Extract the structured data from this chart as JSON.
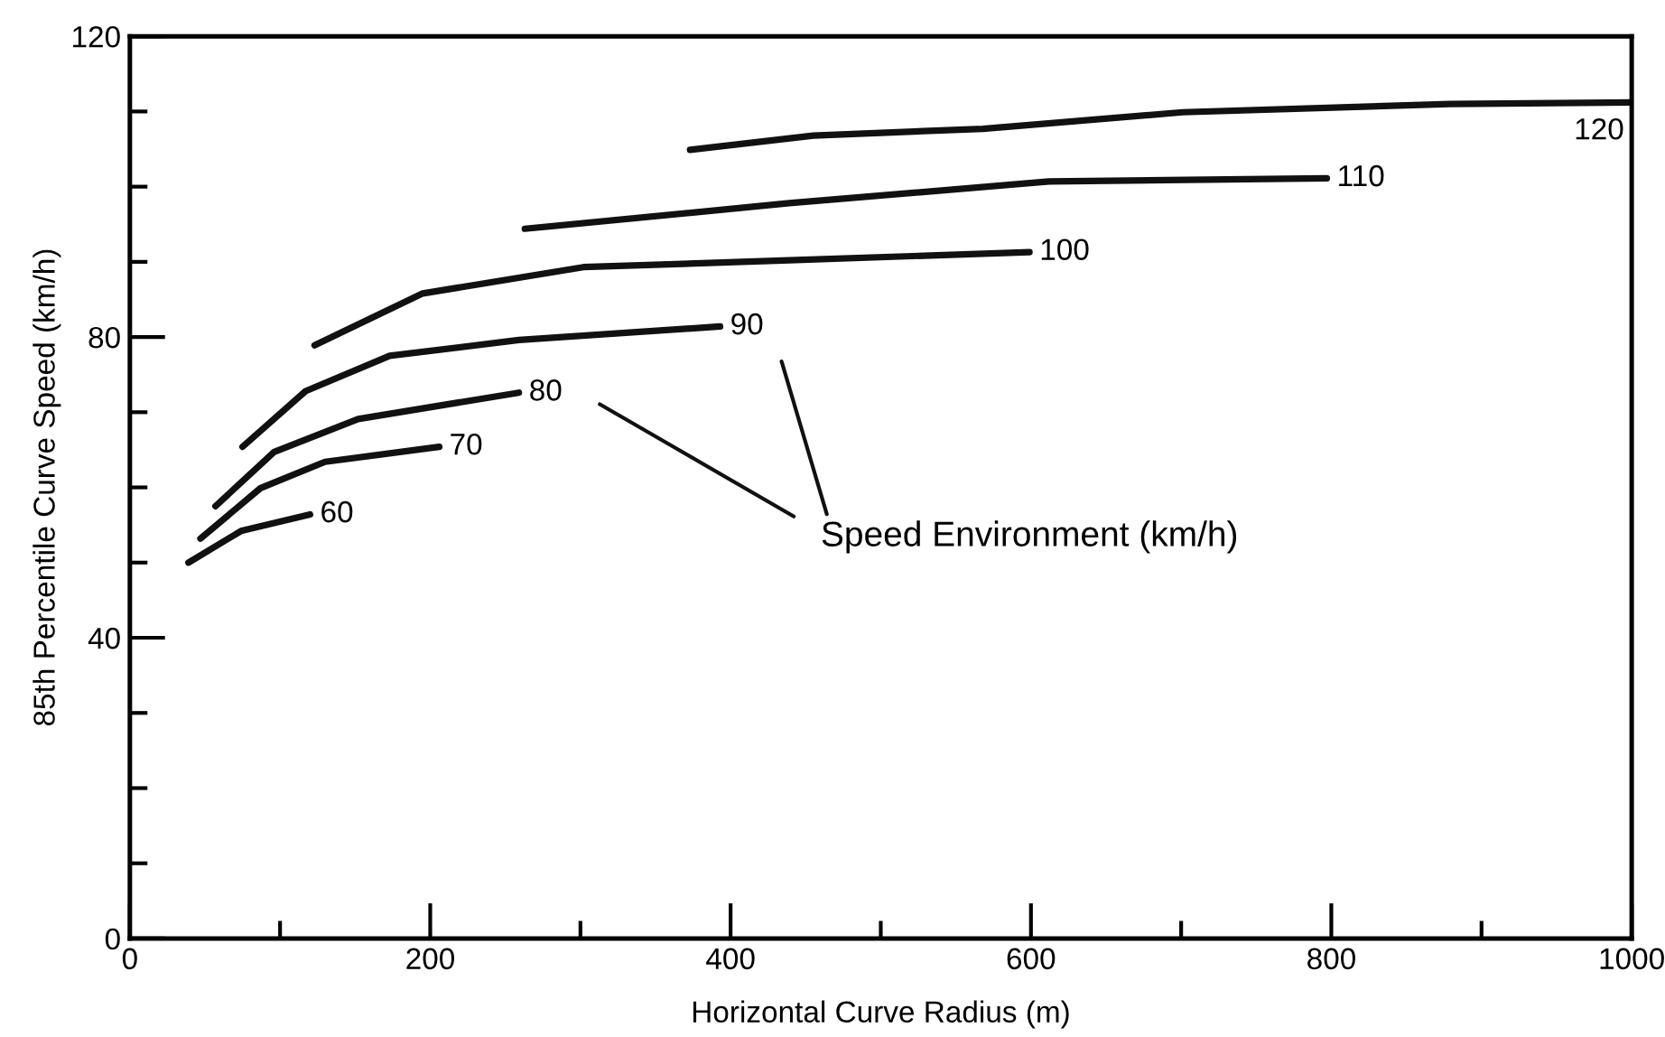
{
  "chart_data": {
    "type": "line",
    "xlabel": "Horizontal Curve Radius (m)",
    "ylabel": "85th Percentile Curve Speed (km/h)",
    "xlim": [
      0,
      1000
    ],
    "ylim": [
      0,
      120
    ],
    "xticks": [
      0,
      {
        "value": 100,
        "label": null
      },
      200,
      {
        "value": 300,
        "label": null
      },
      400,
      {
        "value": 500,
        "label": null
      },
      600,
      {
        "value": 700,
        "label": null
      },
      800,
      {
        "value": 900,
        "label": null
      },
      1000
    ],
    "yticks": [
      0,
      {
        "value": 10,
        "label": null
      },
      {
        "value": 20,
        "label": null
      },
      {
        "value": 30,
        "label": null
      },
      40,
      {
        "value": 50,
        "label": null
      },
      {
        "value": 60,
        "label": null
      },
      {
        "value": 70,
        "label": null
      },
      80,
      {
        "value": 90,
        "label": null
      },
      {
        "value": 100,
        "label": null
      },
      {
        "value": 110,
        "label": null
      },
      120
    ],
    "grid": false,
    "legend": false,
    "marker": "none",
    "line_style": "solid",
    "annotations": [
      "Speed Environment (km/h)"
    ],
    "series": [
      {
        "name": "60",
        "color": "#111111",
        "x": [
          39,
          74,
          120
        ],
        "values": [
          50.0,
          54.2,
          56.4
        ]
      },
      {
        "name": "70",
        "color": "#111111",
        "x": [
          47,
          87,
          130,
          206
        ],
        "values": [
          53.2,
          59.9,
          63.4,
          65.4
        ]
      },
      {
        "name": "80",
        "color": "#111111",
        "x": [
          57,
          96,
          152,
          259
        ],
        "values": [
          57.5,
          64.7,
          69.1,
          72.6
        ]
      },
      {
        "name": "90",
        "color": "#111111",
        "x": [
          75,
          117,
          173,
          259,
          393
        ],
        "values": [
          65.4,
          72.8,
          77.5,
          79.6,
          81.4
        ]
      },
      {
        "name": "100",
        "color": "#111111",
        "x": [
          123,
          195,
          302,
          439,
          599
        ],
        "values": [
          78.9,
          85.8,
          89.3,
          90.2,
          91.3
        ]
      },
      {
        "name": "110",
        "color": "#111111",
        "x": [
          263,
          439,
          612,
          797
        ],
        "values": [
          94.4,
          97.8,
          100.7,
          101.1
        ]
      },
      {
        "name": "120",
        "color": "#111111",
        "x": [
          373,
          455,
          568,
          701,
          879,
          1000
        ],
        "values": [
          104.9,
          106.8,
          107.7,
          109.9,
          111.0,
          111.2
        ]
      }
    ]
  }
}
